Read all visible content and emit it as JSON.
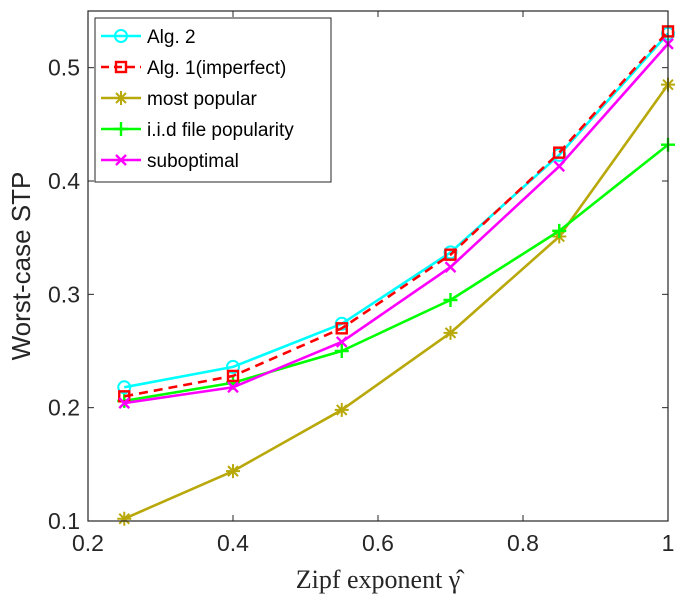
{
  "chart_data": {
    "type": "line",
    "title": "",
    "xlabel": "Zipf exponent γ̂",
    "ylabel": "Worst-case STP",
    "xlim": [
      0.2,
      1.0
    ],
    "ylim": [
      0.1,
      0.55
    ],
    "xticks": [
      0.2,
      0.4,
      0.6,
      0.8,
      1.0
    ],
    "xtick_labels": [
      "0.2",
      "0.4",
      "0.6",
      "0.8",
      "1"
    ],
    "yticks": [
      0.1,
      0.2,
      0.3,
      0.4,
      0.5
    ],
    "ytick_labels": [
      "0.1",
      "0.2",
      "0.3",
      "0.4",
      "0.5"
    ],
    "legend_position": "top-left",
    "x": [
      0.25,
      0.4,
      0.55,
      0.7,
      0.85,
      1.0
    ],
    "series": [
      {
        "name": "Alg. 2",
        "values": [
          0.218,
          0.236,
          0.274,
          0.337,
          0.423,
          0.53
        ],
        "color": "#00ffff",
        "marker": "circle",
        "dash": "solid"
      },
      {
        "name": "Alg. 1(imperfect)",
        "values": [
          0.21,
          0.228,
          0.27,
          0.335,
          0.425,
          0.532
        ],
        "color": "#ff0000",
        "marker": "square",
        "dash": "dashed"
      },
      {
        "name": "most popular",
        "values": [
          0.102,
          0.144,
          0.198,
          0.266,
          0.351,
          0.485
        ],
        "color": "#b8a80a",
        "marker": "asterisk",
        "dash": "solid"
      },
      {
        "name": "i.i.d file popularity",
        "values": [
          0.206,
          0.222,
          0.25,
          0.295,
          0.356,
          0.432
        ],
        "color": "#00ff00",
        "marker": "plus",
        "dash": "solid"
      },
      {
        "name": "suboptimal",
        "values": [
          0.204,
          0.218,
          0.258,
          0.324,
          0.413,
          0.521
        ],
        "color": "#ff00ff",
        "marker": "cross",
        "dash": "solid"
      }
    ]
  }
}
